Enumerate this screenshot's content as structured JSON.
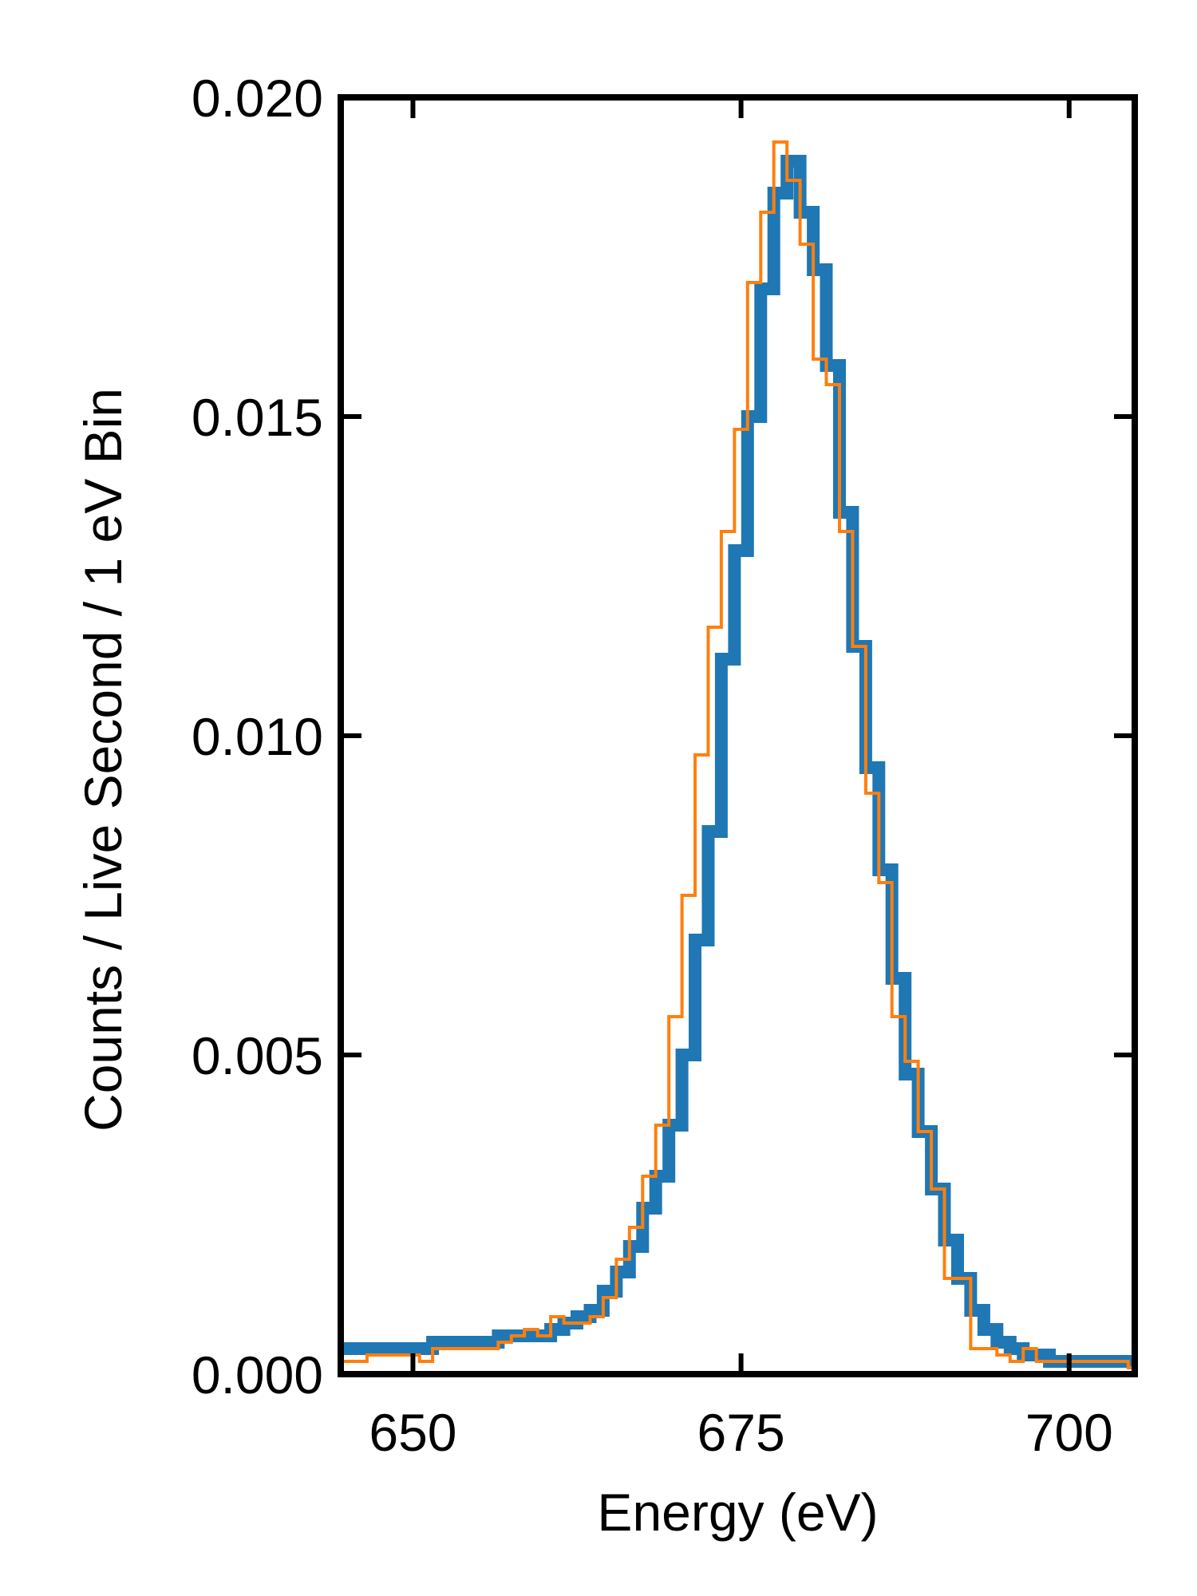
{
  "chart_data": {
    "type": "line",
    "title": "",
    "xlabel": "Energy (eV)",
    "ylabel": "Counts / Live Second / 1 eV Bin",
    "xlim": [
      644.5,
      705
    ],
    "ylim": [
      0,
      0.02
    ],
    "xticks": [
      650,
      675,
      700
    ],
    "xtick_labels": [
      "650",
      "675",
      "700"
    ],
    "yticks": [
      0,
      0.005,
      0.01,
      0.015,
      0.02
    ],
    "ytick_labels": [
      "0.000",
      "0.005",
      "0.010",
      "0.015",
      "0.020"
    ],
    "grid": false,
    "legend": "none",
    "bin_edges": [
      644.5,
      645.5,
      646.5,
      647.5,
      648.5,
      649.5,
      650.5,
      651.5,
      652.5,
      653.5,
      654.5,
      655.5,
      656.5,
      657.5,
      658.5,
      659.5,
      660.5,
      661.5,
      662.5,
      663.5,
      664.5,
      665.5,
      666.5,
      667.5,
      668.5,
      669.5,
      670.5,
      671.5,
      672.5,
      673.5,
      674.5,
      675.5,
      676.5,
      677.5,
      678.5,
      679.5,
      680.5,
      681.5,
      682.5,
      683.5,
      684.5,
      685.5,
      686.5,
      687.5,
      688.5,
      689.5,
      690.5,
      691.5,
      692.5,
      693.5,
      694.5,
      695.5,
      696.5,
      697.5,
      698.5,
      699.5,
      700.5,
      701.5,
      702.5,
      703.5,
      704.5,
      705.0
    ],
    "series": [
      {
        "color": "#1f77b4",
        "values": [
          0.0004,
          0.0004,
          0.0004,
          0.0004,
          0.0004,
          0.0004,
          0.0004,
          0.0005,
          0.0005,
          0.0005,
          0.0005,
          0.0005,
          0.0006,
          0.0006,
          0.0006,
          0.0006,
          0.0007,
          0.0008,
          0.0009,
          0.001,
          0.0013,
          0.0016,
          0.002,
          0.0026,
          0.0031,
          0.0039,
          0.005,
          0.0068,
          0.0085,
          0.0112,
          0.0129,
          0.015,
          0.017,
          0.0185,
          0.019,
          0.0182,
          0.0173,
          0.0158,
          0.0135,
          0.0114,
          0.0095,
          0.0079,
          0.0062,
          0.0047,
          0.0038,
          0.0029,
          0.0021,
          0.0015,
          0.001,
          0.0007,
          0.0005,
          0.0004,
          0.0003,
          0.0003,
          0.0002,
          0.0002,
          0.0002,
          0.0002,
          0.0002,
          0.0002,
          0.0002
        ]
      },
      {
        "color": "#ff7f0e",
        "values": [
          0.0002,
          0.0002,
          0.0003,
          0.0003,
          0.0003,
          0.0003,
          0.0002,
          0.0004,
          0.0004,
          0.0004,
          0.0004,
          0.0004,
          0.0005,
          0.0006,
          0.0007,
          0.0006,
          0.0009,
          0.0008,
          0.0008,
          0.0009,
          0.0012,
          0.0018,
          0.0023,
          0.0031,
          0.0039,
          0.0056,
          0.0075,
          0.0097,
          0.0117,
          0.0132,
          0.0148,
          0.0171,
          0.0182,
          0.0193,
          0.0187,
          0.0177,
          0.0159,
          0.0155,
          0.0132,
          0.0114,
          0.0091,
          0.0077,
          0.0056,
          0.0049,
          0.0038,
          0.0029,
          0.0015,
          0.0015,
          0.0004,
          0.0004,
          0.0003,
          0.0002,
          0.0004,
          0.0002,
          0.0002,
          0.0002,
          0.0002,
          0.0002,
          0.0002,
          0.0002,
          0.0001
        ]
      }
    ]
  }
}
